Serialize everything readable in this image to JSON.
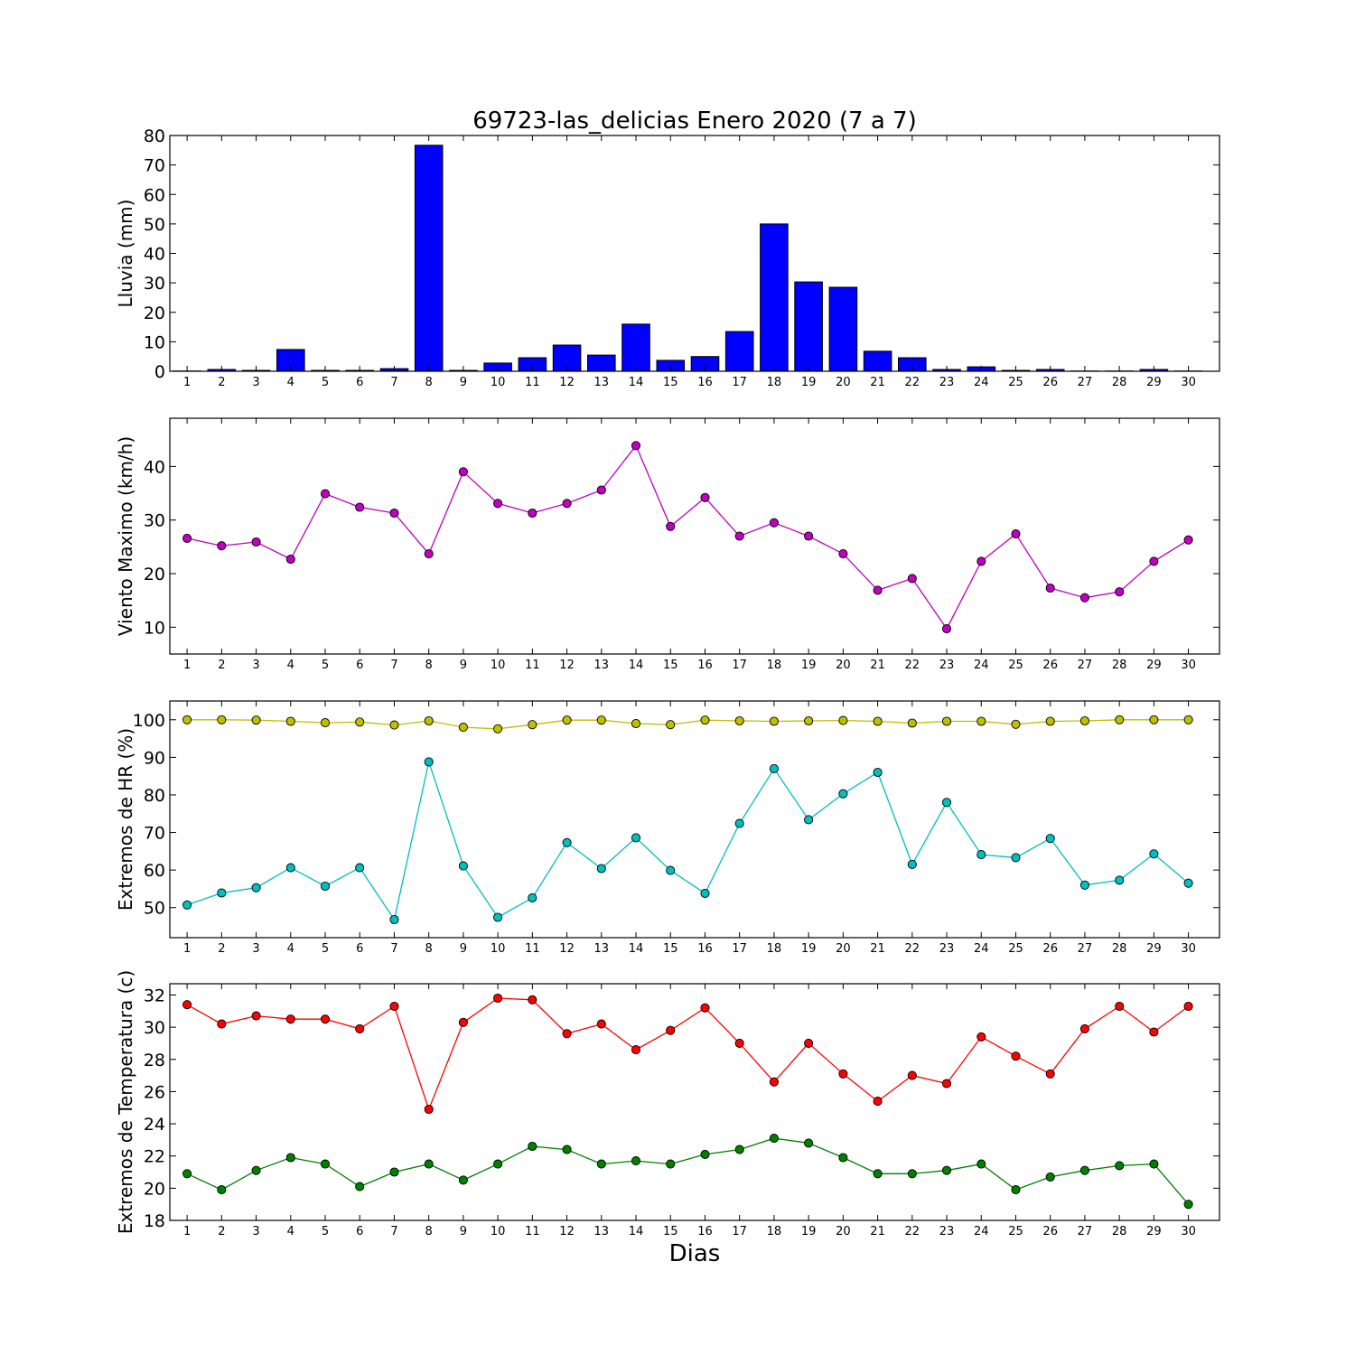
{
  "chart_data": [
    {
      "type": "bar",
      "title": "69723-las_delicias Enero 2020  (7 a 7)",
      "ylabel": "Lluvia (mm)",
      "xlabel": "",
      "x": [
        1,
        2,
        3,
        4,
        5,
        6,
        7,
        8,
        9,
        10,
        11,
        12,
        13,
        14,
        15,
        16,
        17,
        18,
        19,
        20,
        21,
        22,
        23,
        24,
        25,
        26,
        27,
        28,
        29,
        30
      ],
      "ylim": [
        0,
        80
      ],
      "yticks": [
        0,
        10,
        20,
        30,
        40,
        50,
        60,
        70,
        80
      ],
      "grid": false,
      "series": [
        {
          "color": "#0000ff",
          "values": [
            0.1,
            0.6,
            0.3,
            7.4,
            0.3,
            0.3,
            0.9,
            76.7,
            0.3,
            2.8,
            4.6,
            8.9,
            5.5,
            16.0,
            3.7,
            5.0,
            13.5,
            50.0,
            30.3,
            28.5,
            6.8,
            4.6,
            0.6,
            1.5,
            0.3,
            0.6,
            0.1,
            0.1,
            0.6,
            0.1
          ]
        }
      ]
    },
    {
      "type": "line",
      "title": "",
      "ylabel": "Viento Maximo (km/h)",
      "xlabel": "",
      "x": [
        1,
        2,
        3,
        4,
        5,
        6,
        7,
        8,
        9,
        10,
        11,
        12,
        13,
        14,
        15,
        16,
        17,
        18,
        19,
        20,
        21,
        22,
        23,
        24,
        25,
        26,
        27,
        28,
        29,
        30
      ],
      "ylim": [
        5,
        49
      ],
      "yticks": [
        10,
        20,
        30,
        40
      ],
      "grid": false,
      "series": [
        {
          "color": "#bf00bf",
          "values": [
            26.6,
            25.2,
            25.9,
            22.7,
            34.9,
            32.4,
            31.3,
            23.7,
            39.0,
            33.1,
            31.3,
            33.1,
            35.6,
            43.9,
            28.8,
            34.2,
            27.0,
            29.5,
            27.0,
            23.7,
            16.9,
            19.1,
            9.7,
            22.3,
            27.4,
            17.3,
            15.5,
            16.6,
            22.3,
            26.3
          ]
        }
      ]
    },
    {
      "type": "line",
      "title": "",
      "ylabel": "Extremos de HR (%)",
      "xlabel": "",
      "x": [
        1,
        2,
        3,
        4,
        5,
        6,
        7,
        8,
        9,
        10,
        11,
        12,
        13,
        14,
        15,
        16,
        17,
        18,
        19,
        20,
        21,
        22,
        23,
        24,
        25,
        26,
        27,
        28,
        29,
        30
      ],
      "ylim": [
        42,
        105
      ],
      "yticks": [
        50,
        60,
        70,
        80,
        90,
        100
      ],
      "grid": false,
      "series": [
        {
          "color": "#bfbf00",
          "values": [
            100,
            100,
            99.9,
            99.6,
            99.2,
            99.4,
            98.6,
            99.7,
            98.0,
            97.6,
            98.7,
            99.9,
            99.9,
            99.0,
            98.7,
            99.9,
            99.7,
            99.6,
            99.7,
            99.8,
            99.6,
            99.1,
            99.6,
            99.6,
            98.8,
            99.6,
            99.7,
            100,
            100,
            100
          ]
        },
        {
          "color": "#00bfbf",
          "values": [
            50.7,
            53.9,
            55.3,
            60.6,
            55.7,
            60.6,
            46.8,
            88.8,
            61.1,
            47.4,
            52.6,
            67.3,
            60.4,
            68.6,
            59.9,
            53.8,
            72.4,
            87.0,
            73.4,
            80.3,
            86.0,
            61.5,
            78.0,
            64.1,
            63.3,
            68.4,
            56.0,
            57.3,
            64.3,
            56.5
          ]
        }
      ]
    },
    {
      "type": "line",
      "title": "",
      "ylabel": "Extremos de Temperatura (c)",
      "xlabel": "Dias",
      "x": [
        1,
        2,
        3,
        4,
        5,
        6,
        7,
        8,
        9,
        10,
        11,
        12,
        13,
        14,
        15,
        16,
        17,
        18,
        19,
        20,
        21,
        22,
        23,
        24,
        25,
        26,
        27,
        28,
        29,
        30
      ],
      "ylim": [
        18,
        32.7
      ],
      "yticks": [
        18,
        20,
        22,
        24,
        26,
        28,
        30,
        32
      ],
      "grid": false,
      "series": [
        {
          "color": "#ff0000",
          "values": [
            31.4,
            30.2,
            30.7,
            30.5,
            30.5,
            29.9,
            31.3,
            24.9,
            30.3,
            31.8,
            31.7,
            29.6,
            30.2,
            28.6,
            29.8,
            31.2,
            29.0,
            26.6,
            29.0,
            27.1,
            25.4,
            27.0,
            26.5,
            29.4,
            28.2,
            27.1,
            29.9,
            31.3,
            29.7,
            31.3
          ]
        },
        {
          "color": "#008000",
          "values": [
            20.9,
            19.9,
            21.1,
            21.9,
            21.5,
            20.1,
            21.0,
            21.5,
            20.5,
            21.5,
            22.6,
            22.4,
            21.5,
            21.7,
            21.5,
            22.1,
            22.4,
            23.1,
            22.8,
            21.9,
            20.9,
            20.9,
            21.1,
            21.5,
            19.9,
            20.7,
            21.1,
            21.4,
            21.5,
            19.0
          ]
        }
      ]
    }
  ]
}
